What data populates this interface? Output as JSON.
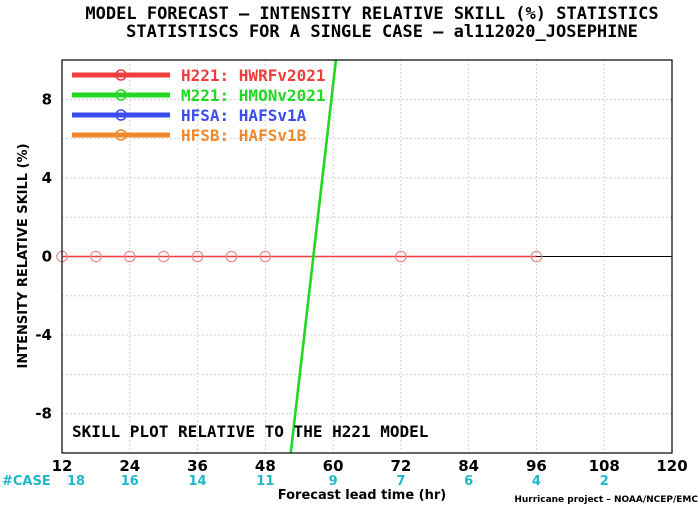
{
  "chart_data": {
    "type": "line",
    "title": "MODEL FORECAST – INTENSITY RELATIVE SKILL (%) STATISTICS",
    "subtitle": "STATISTISCS FOR A SINGLE CASE – al112020_JOSEPHINE",
    "xlabel": "Forecast lead time (hr)",
    "ylabel": "INTENSITY RELATIVE SKILL (%)",
    "xlim": [
      12,
      120
    ],
    "ylim": [
      -10,
      10
    ],
    "xticks": [
      12,
      24,
      36,
      48,
      60,
      72,
      84,
      96,
      108,
      120
    ],
    "yticks": [
      -8,
      -4,
      0,
      4,
      8
    ],
    "grid": true,
    "legend_position": "top-left",
    "annotation": "SKILL PLOT RELATIVE TO THE H221 MODEL",
    "case_label": "#CASE",
    "case_counts": [
      18,
      16,
      14,
      11,
      9,
      7,
      6,
      4,
      2
    ],
    "credit": "Hurricane project – NOAA/NCEP/EMC",
    "series": [
      {
        "name": "H221: HWRFv2021",
        "color": "#f03c3c",
        "x": [
          12,
          18,
          24,
          30,
          36,
          42,
          48,
          72,
          96
        ],
        "y": [
          0,
          0,
          0,
          0,
          0,
          0,
          0,
          0,
          0
        ]
      },
      {
        "name": "M221: HMONv2021",
        "color": "#22d822",
        "x": [
          52.5,
          60.5
        ],
        "y": [
          -10,
          10
        ]
      },
      {
        "name": "HFSA: HAFSv1A",
        "color": "#3a4cf0",
        "x": [],
        "y": []
      },
      {
        "name": "HFSB: HAFSv1B",
        "color": "#f0882c",
        "x": [],
        "y": []
      }
    ]
  }
}
